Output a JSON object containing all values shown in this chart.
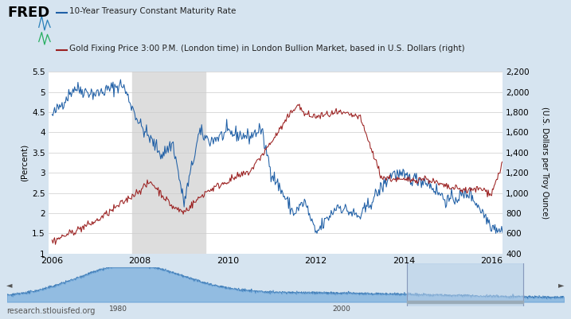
{
  "legend_line1": "10-Year Treasury Constant Maturity Rate",
  "legend_line2": "Gold Fixing Price 3:00 P.M. (London time) in London Bullion Market, based in U.S. Dollars (right)",
  "blue_color": "#1f5fa6",
  "red_color": "#9b2020",
  "bg_color": "#d6e4f0",
  "plot_bg": "#ffffff",
  "recession_color": "#dddddd",
  "recession_start": 2007.83,
  "recession_end": 2009.5,
  "left_ylabel": "(Percent)",
  "right_ylabel": "(U.S. Dollars per Troy Ounce)",
  "ylim_left": [
    1.0,
    5.5
  ],
  "ylim_right": [
    400,
    2200
  ],
  "xlim": [
    2005.92,
    2016.25
  ],
  "yticks_left": [
    1.0,
    1.5,
    2.0,
    2.5,
    3.0,
    3.5,
    4.0,
    4.5,
    5.0,
    5.5
  ],
  "yticks_right": [
    400,
    600,
    800,
    1000,
    1200,
    1400,
    1600,
    1800,
    2000,
    2200
  ],
  "xticks": [
    2006,
    2008,
    2010,
    2012,
    2014,
    2016
  ],
  "footnote": "research.stlouisfed.org",
  "nav_labels": [
    "1980",
    "2000"
  ]
}
